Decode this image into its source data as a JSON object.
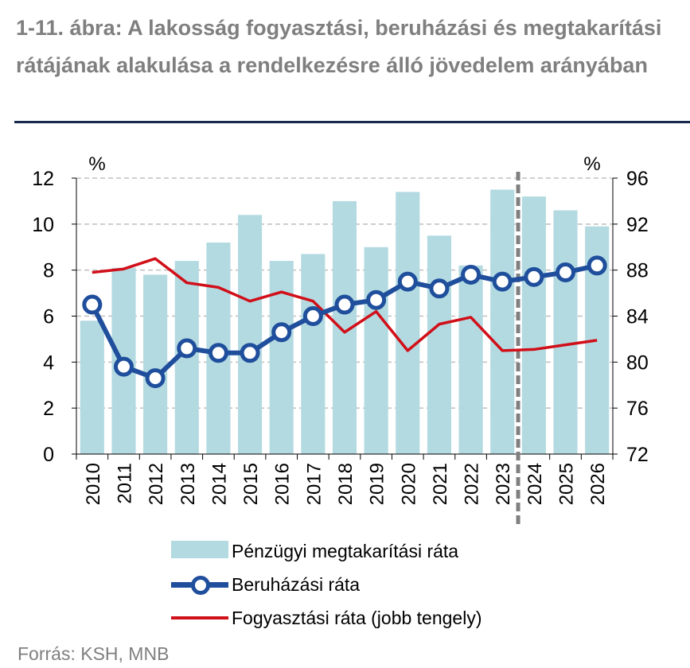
{
  "title": "1-11. ábra: A lakosság fogyasztási, beruházási és megtakarítási rátájának alakulása a rendelkezésre álló jövedelem arányában",
  "source": "Forrás: KSH, MNB",
  "colors": {
    "savings": "#b3dae1",
    "investment": "#1f4e9c",
    "consumption": "#d10f19",
    "title": "#7f7f7f",
    "rule": "#17294f"
  },
  "chart_data": {
    "type": "bar",
    "categories": [
      "2010",
      "2011",
      "2012",
      "2013",
      "2014",
      "2015",
      "2016",
      "2017",
      "2018",
      "2019",
      "2020",
      "2021",
      "2022",
      "2023",
      "2024",
      "2025",
      "2026"
    ],
    "left_axis": {
      "unit": "%",
      "ylim": [
        0,
        12
      ],
      "ticks": [
        "0",
        "2",
        "4",
        "6",
        "8",
        "10",
        "12"
      ]
    },
    "right_axis": {
      "unit": "%",
      "ylim": [
        72,
        96
      ],
      "ticks": [
        "72",
        "76",
        "80",
        "84",
        "88",
        "92",
        "96"
      ]
    },
    "forecast_divider_after": "2023",
    "grid": true,
    "legend_position": "bottom",
    "series": [
      {
        "name": "Pénzügyi megtakarítási ráta",
        "type": "bar",
        "axis": "left",
        "values": [
          5.8,
          8.1,
          7.8,
          8.4,
          9.2,
          10.4,
          8.4,
          8.7,
          11.0,
          9.0,
          11.4,
          9.5,
          8.2,
          11.5,
          11.2,
          10.6,
          9.9
        ]
      },
      {
        "name": "Beruházási ráta",
        "type": "line-marker",
        "axis": "left",
        "values": [
          6.5,
          3.8,
          3.3,
          4.6,
          4.4,
          4.4,
          5.3,
          6.0,
          6.5,
          6.7,
          7.5,
          7.2,
          7.8,
          7.5,
          7.7,
          7.9,
          8.2
        ]
      },
      {
        "name": "Fogyasztási ráta (jobb tengely)",
        "type": "line",
        "axis": "right",
        "values": [
          87.8,
          88.1,
          89.0,
          86.9,
          86.5,
          85.3,
          86.1,
          85.3,
          82.6,
          84.4,
          81.0,
          83.3,
          83.9,
          81.0,
          81.1,
          81.5,
          81.9
        ]
      }
    ]
  }
}
